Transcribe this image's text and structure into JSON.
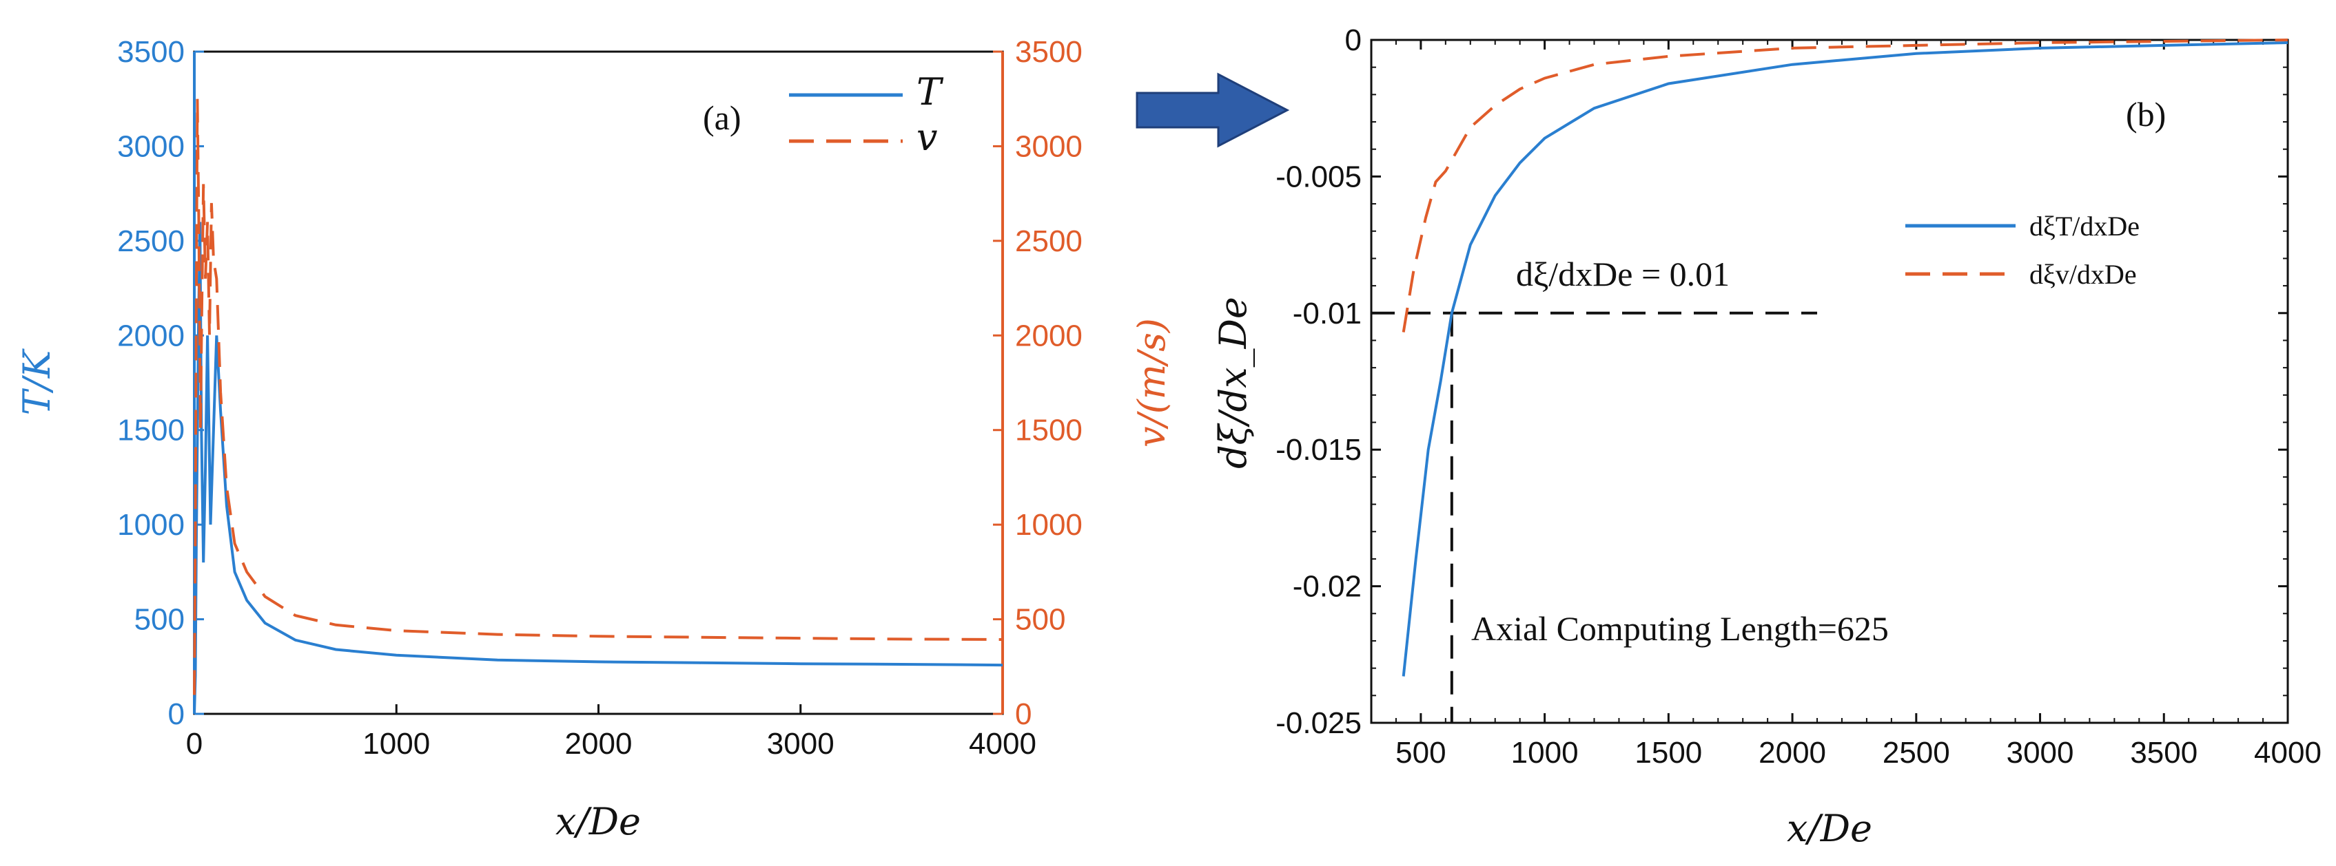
{
  "colors": {
    "blue": "#2a7fd0",
    "orange": "#e05c2a",
    "black": "#111111",
    "arrow": "#2f5da8"
  },
  "icons": {
    "arrow": "right-arrow-icon"
  },
  "chart_data": [
    {
      "type": "line",
      "panel_label": "(a)",
      "xlabel": "x/De",
      "ylabel_left": "T/K",
      "ylabel_right": "v/(m/s)",
      "xlim": [
        0,
        4000
      ],
      "ylim_left": [
        0,
        3500
      ],
      "ylim_right": [
        0,
        3500
      ],
      "xticks": [
        "0",
        "1000",
        "2000",
        "3000",
        "4000"
      ],
      "yticks_left": [
        "0",
        "500",
        "1000",
        "1500",
        "2000",
        "2500",
        "3000",
        "3500"
      ],
      "yticks_right": [
        "0",
        "500",
        "1000",
        "1500",
        "2000",
        "2500",
        "3000",
        "3500"
      ],
      "legend": [
        "T",
        "v"
      ],
      "series": [
        {
          "name": "T",
          "axis": "left",
          "style": "solid",
          "x": [
            0,
            5,
            10,
            20,
            28,
            35,
            45,
            55,
            65,
            80,
            95,
            110,
            130,
            160,
            200,
            260,
            350,
            500,
            700,
            1000,
            1500,
            2000,
            2500,
            3000,
            3500,
            4000
          ],
          "y": [
            0,
            200,
            900,
            2000,
            2600,
            1500,
            800,
            1300,
            2000,
            1000,
            1500,
            2000,
            1600,
            1100,
            750,
            600,
            480,
            390,
            340,
            310,
            285,
            275,
            270,
            265,
            262,
            258
          ]
        },
        {
          "name": "v",
          "axis": "right",
          "style": "dashed",
          "x": [
            0,
            5,
            10,
            15,
            22,
            30,
            38,
            45,
            55,
            65,
            75,
            85,
            95,
            110,
            130,
            160,
            200,
            260,
            350,
            500,
            700,
            1000,
            1500,
            2000,
            2500,
            3000,
            3500,
            4000
          ],
          "y": [
            100,
            1000,
            2200,
            3250,
            2600,
            1500,
            2200,
            2800,
            2300,
            2600,
            2000,
            2700,
            2400,
            2300,
            1700,
            1200,
            900,
            750,
            620,
            520,
            470,
            440,
            420,
            410,
            405,
            400,
            395,
            393
          ]
        }
      ]
    },
    {
      "type": "line",
      "panel_label": "(b)",
      "xlabel": "x/De",
      "ylabel": "dξ/dx_De",
      "xlim": [
        300,
        4000
      ],
      "ylim": [
        -0.025,
        0
      ],
      "xticks": [
        "500",
        "1000",
        "1500",
        "2000",
        "2500",
        "3000",
        "3500",
        "4000"
      ],
      "yticks": [
        "0",
        "-0.005",
        "-0.01",
        "-0.015",
        "-0.02",
        "-0.025"
      ],
      "legend": [
        "dξT/dxDe",
        "dξv/dxDe"
      ],
      "annotations": [
        "dξ/dxDe = 0.01",
        "Axial Computing Length=625"
      ],
      "threshold_y": -0.01,
      "threshold_x": 625,
      "series": [
        {
          "name": "dξT/dxDe",
          "style": "solid",
          "x": [
            430,
            480,
            530,
            580,
            625,
            700,
            800,
            900,
            1000,
            1200,
            1500,
            2000,
            2500,
            3000,
            3500,
            4000
          ],
          "y": [
            -0.0233,
            -0.019,
            -0.015,
            -0.0125,
            -0.01,
            -0.0075,
            -0.0057,
            -0.0045,
            -0.0036,
            -0.0025,
            -0.0016,
            -0.0009,
            -0.0005,
            -0.0003,
            -0.0002,
            -0.0001
          ]
        },
        {
          "name": "dξv/dxDe",
          "style": "dashed",
          "x": [
            430,
            470,
            520,
            560,
            600,
            650,
            700,
            800,
            900,
            1000,
            1200,
            1500,
            2000,
            2500,
            3000,
            3500,
            4000
          ],
          "y": [
            -0.0107,
            -0.0085,
            -0.0065,
            -0.0052,
            -0.0048,
            -0.004,
            -0.0032,
            -0.0024,
            -0.0018,
            -0.0014,
            -0.0009,
            -0.0006,
            -0.0003,
            -0.0002,
            -0.0001,
            -5e-05,
            0.0
          ]
        }
      ]
    }
  ]
}
